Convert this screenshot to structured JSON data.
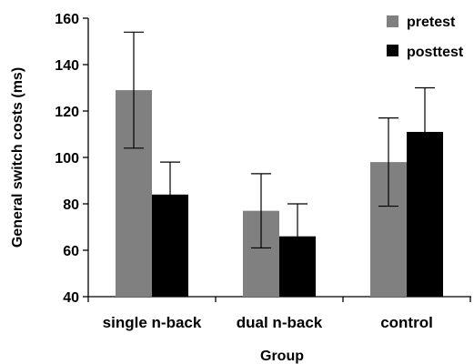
{
  "chart_data": {
    "type": "bar",
    "categories": [
      "single n-back",
      "dual n-back",
      "control"
    ],
    "series": [
      {
        "name": "pretest",
        "color": "#808080",
        "values": [
          129,
          77,
          98
        ],
        "error_low": [
          104,
          61,
          79
        ],
        "error_high": [
          154,
          93,
          117
        ]
      },
      {
        "name": "posttest",
        "color": "#000000",
        "values": [
          84,
          66,
          111
        ],
        "error_low": [
          70,
          52,
          92
        ],
        "error_high": [
          98,
          80,
          130
        ]
      }
    ],
    "ylim": [
      40,
      160
    ],
    "yticks": [
      40,
      60,
      80,
      100,
      120,
      140,
      160
    ],
    "ylabel": "General switch costs (ms)",
    "xlabel": "Group",
    "legend_position": "top-right",
    "grid": false
  }
}
